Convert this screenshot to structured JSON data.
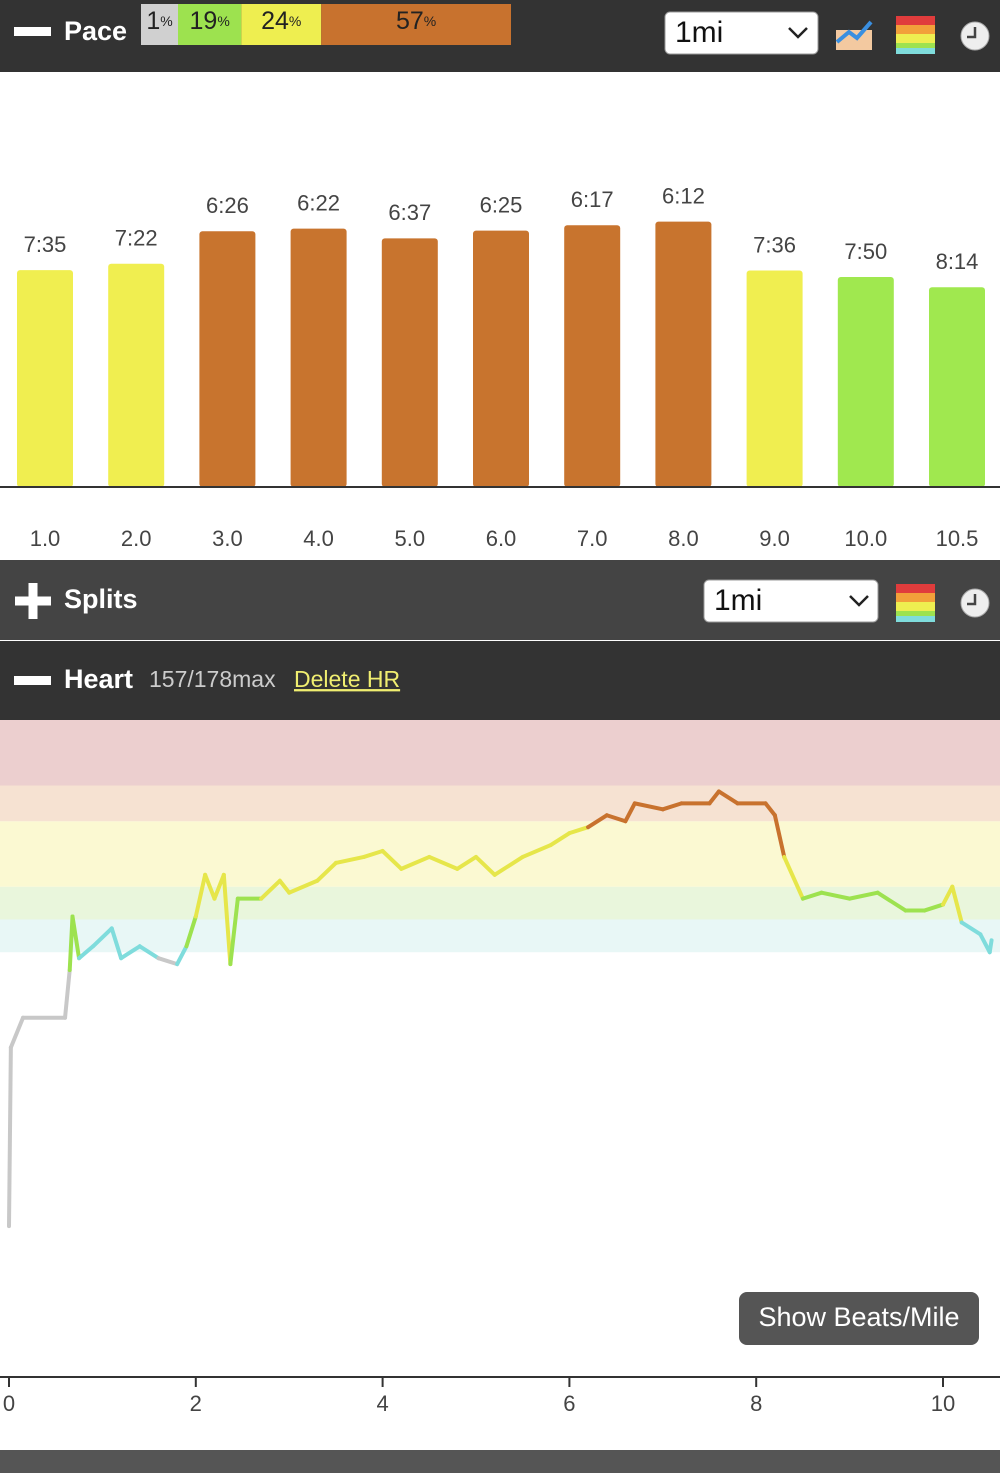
{
  "pace_panel": {
    "title": "Pace",
    "distance_select": "1mi",
    "zones": {
      "values": [
        1,
        19,
        24,
        57
      ],
      "unit": "%",
      "colors": [
        "#d0d0d0",
        "#9de24f",
        "#eeee50",
        "#c8722e"
      ]
    }
  },
  "chart_data": [
    {
      "type": "bar",
      "categories": [
        "1.0",
        "2.0",
        "3.0",
        "4.0",
        "5.0",
        "6.0",
        "7.0",
        "8.0",
        "9.0",
        "10.0",
        "10.5"
      ],
      "values": [
        455,
        442,
        386,
        382,
        397,
        385,
        377,
        372,
        456,
        470,
        494
      ],
      "value_labels": [
        "7:35",
        "7:22",
        "6:26",
        "6:22",
        "6:37",
        "6:25",
        "6:17",
        "6:12",
        "7:36",
        "7:50",
        "8:14"
      ],
      "colors": [
        "#f0ee50",
        "#f0ee50",
        "#c8742e",
        "#c8742e",
        "#c8742e",
        "#c8742e",
        "#c8742e",
        "#c8742e",
        "#f0ee50",
        "#a0e84f",
        "#a0e84f"
      ]
    },
    {
      "type": "line",
      "x": [
        0,
        0.02,
        0.15,
        0.6,
        0.65,
        0.68,
        0.75,
        0.9,
        1.1,
        1.2,
        1.4,
        1.6,
        1.8,
        1.9,
        2.0,
        2.1,
        2.2,
        2.3,
        2.37,
        2.45,
        2.7,
        2.9,
        3.0,
        3.3,
        3.5,
        3.8,
        4.0,
        4.2,
        4.5,
        4.8,
        5.0,
        5.2,
        5.5,
        5.8,
        6.0,
        6.2,
        6.4,
        6.6,
        6.7,
        7.0,
        7.2,
        7.5,
        7.6,
        7.8,
        8.1,
        8.2,
        8.3,
        8.5,
        8.7,
        9.0,
        9.3,
        9.6,
        9.8,
        10.0,
        10.1,
        10.2,
        10.4,
        10.5,
        10.52
      ],
      "values": [
        105,
        135,
        140,
        140,
        148,
        157,
        150,
        152,
        155,
        150,
        152,
        150,
        149,
        152,
        157,
        164,
        160,
        164,
        149,
        160,
        160,
        163,
        161,
        163,
        166,
        167,
        168,
        165,
        167,
        165,
        167,
        164,
        167,
        169,
        171,
        172,
        174,
        173,
        176,
        175,
        176,
        176,
        178,
        176,
        176,
        174,
        167,
        160,
        161,
        160,
        161,
        158,
        158,
        159,
        162,
        156,
        154,
        151,
        153
      ],
      "xlim": [
        0,
        10.6
      ],
      "ylim": [
        80,
        190
      ],
      "xticks": [
        0,
        2,
        4,
        6,
        8,
        10
      ],
      "base_color": "#c8c8c8",
      "zones": [
        {
          "from": 151,
          "to": 156.5,
          "fill": "#e8f7f6",
          "line": "#7fdcdc"
        },
        {
          "from": 156.5,
          "to": 162,
          "fill": "#e9f6dc",
          "line": "#9de24f"
        },
        {
          "from": 162,
          "to": 173,
          "fill": "#fbf9d2",
          "line": "#e6e64a"
        },
        {
          "from": 173,
          "to": 179,
          "fill": "#f6e2d2",
          "line": "#c8722e"
        },
        {
          "from": 179,
          "to": 190,
          "fill": "#eccfcf",
          "line": "#d05050"
        }
      ]
    }
  ],
  "splits_panel": {
    "title": "Splits",
    "distance_select": "1mi"
  },
  "heart_panel": {
    "title": "Heart",
    "summary": "157/178max",
    "link": "Delete HR",
    "button": "Show Beats/Mile"
  }
}
